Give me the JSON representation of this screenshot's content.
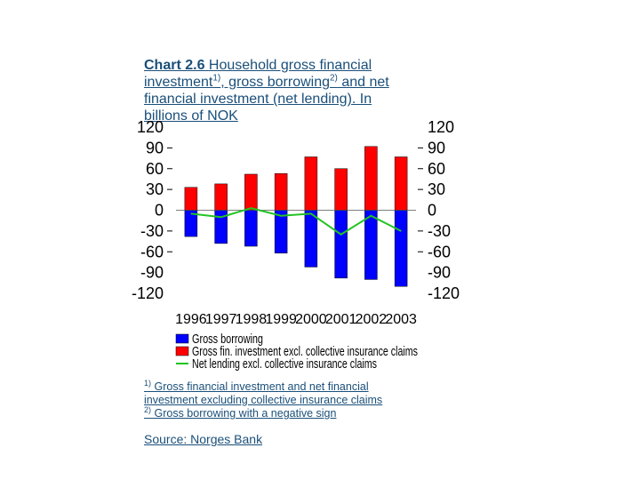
{
  "title": {
    "label": "Chart 2.6",
    "line1": "Household gross financial",
    "line2a": "investment",
    "sup1": "1)",
    "line2b": ", gross borrowing",
    "sup2": "2)",
    "line2c": " and net",
    "line3": "financial investment (net lending). In",
    "line4": "billions of NOK"
  },
  "chart_data": {
    "type": "bar",
    "categories": [
      "1996",
      "1997",
      "1998",
      "1999",
      "2000",
      "2001",
      "2002",
      "2003"
    ],
    "series": [
      {
        "name": "Gross borrowing",
        "type": "bar",
        "color": "#0000ff",
        "values": [
          -38,
          -48,
          -52,
          -62,
          -82,
          -98,
          -100,
          -110
        ]
      },
      {
        "name": "Gross fin. investment excl. collective insurance claims",
        "type": "bar",
        "color": "#ff0000",
        "values": [
          33,
          38,
          52,
          53,
          77,
          60,
          92,
          77
        ]
      },
      {
        "name": "Net lending excl. collective insurance claims",
        "type": "line",
        "color": "#22c422",
        "values": [
          -5,
          -10,
          3,
          -8,
          -5,
          -35,
          -8,
          -30
        ]
      }
    ],
    "ylim": [
      -120,
      120
    ],
    "yticks_left": [
      "120",
      "90",
      "60",
      "30",
      "0",
      "-30",
      "-60",
      "-90",
      "-120"
    ],
    "yticks_right": [
      "120",
      "90",
      "60",
      "30",
      "0",
      "-30",
      "-60",
      "-90",
      "-120"
    ],
    "legend_position": "bottom",
    "grid": false
  },
  "footnotes": {
    "n1_mark": "1)",
    "n1_line1": " Gross financial investment and net financial",
    "n1_line2": "investment excluding collective insurance claims",
    "n2_mark": "2)",
    "n2_line1": " Gross borrowing with a negative sign"
  },
  "source": "Source: Norges Bank"
}
